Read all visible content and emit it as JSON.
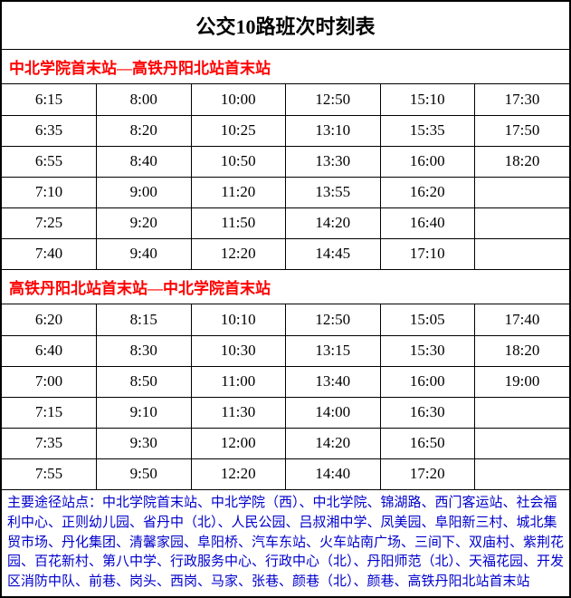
{
  "title": "公交10路班次时刻表",
  "colors": {
    "header_text": "#ff0000",
    "stops_text": "#0000cc",
    "border": "#000000",
    "background": "#ffffff",
    "cell_text": "#000000"
  },
  "sections": [
    {
      "header": "中北学院首末站—高铁丹阳北站首末站",
      "rows": [
        [
          "6:15",
          "8:00",
          "10:00",
          "12:50",
          "15:10",
          "17:30"
        ],
        [
          "6:35",
          "8:20",
          "10:25",
          "13:10",
          "15:35",
          "17:50"
        ],
        [
          "6:55",
          "8:40",
          "10:50",
          "13:30",
          "16:00",
          "18:20"
        ],
        [
          "7:10",
          "9:00",
          "11:20",
          "13:55",
          "16:20",
          ""
        ],
        [
          "7:25",
          "9:20",
          "11:50",
          "14:20",
          "16:40",
          ""
        ],
        [
          "7:40",
          "9:40",
          "12:20",
          "14:45",
          "17:10",
          ""
        ]
      ]
    },
    {
      "header": "高铁丹阳北站首末站—中北学院首末站",
      "rows": [
        [
          "6:20",
          "8:15",
          "10:10",
          "12:50",
          "15:05",
          "17:40"
        ],
        [
          "6:40",
          "8:30",
          "10:30",
          "13:15",
          "15:30",
          "18:20"
        ],
        [
          "7:00",
          "8:50",
          "11:00",
          "13:40",
          "16:00",
          "19:00"
        ],
        [
          "7:15",
          "9:10",
          "11:30",
          "14:00",
          "16:30",
          ""
        ],
        [
          "7:35",
          "9:30",
          "12:00",
          "14:20",
          "16:50",
          ""
        ],
        [
          "7:55",
          "9:50",
          "12:20",
          "14:40",
          "17:20",
          ""
        ]
      ]
    }
  ],
  "stops_label": "主要途径站点：",
  "stops_text": "中北学院首末站、中北学院（西）、中北学院、锦湖路、西门客运站、社会福利中心、正则幼儿园、省丹中（北）、人民公园、吕叔湘中学、凤美园、阜阳新三村、城北集贸市场、丹化集团、清馨家园、阜阳桥、汽车东站、火车站南广场、三间下、双庙村、紫荆花园、百花新村、第八中学、行政服务中心、行政中心（北）、丹阳师范（北）、天福花园、开发区消防中队、前巷、岗头、西岗、马家、张巷、颜巷（北）、颜巷、高铁丹阳北站首末站"
}
